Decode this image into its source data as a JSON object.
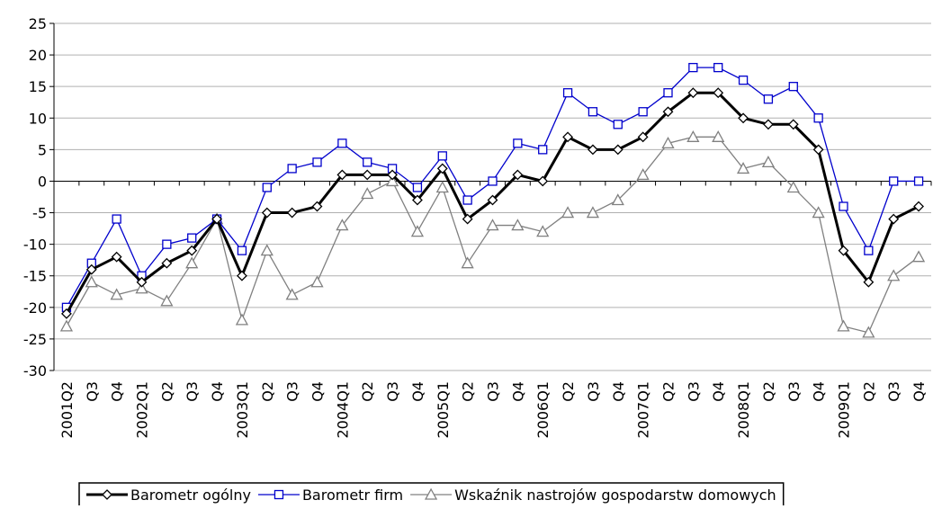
{
  "chart_data": {
    "type": "line",
    "categories": [
      "2001Q2",
      "Q3",
      "Q4",
      "2002Q1",
      "Q2",
      "Q3",
      "Q4",
      "2003Q1",
      "Q2",
      "Q3",
      "Q4",
      "2004Q1",
      "Q2",
      "Q3",
      "Q4",
      "2005Q1",
      "Q2",
      "Q3",
      "Q4",
      "2006Q1",
      "Q2",
      "Q3",
      "Q4",
      "2007Q1",
      "Q2",
      "Q3",
      "Q4",
      "2008Q1",
      "Q2",
      "Q3",
      "Q4",
      "2009Q1",
      "Q2",
      "Q3",
      "Q4"
    ],
    "series": [
      {
        "name": "Barometr ogólny",
        "color": "#000000",
        "marker": "diamond",
        "values": [
          -21,
          -14,
          -12,
          -16,
          -13,
          -11,
          -6,
          -15,
          -5,
          -5,
          -4,
          1,
          1,
          1,
          -3,
          2,
          -6,
          -3,
          1,
          0,
          7,
          5,
          5,
          7,
          11,
          14,
          14,
          10,
          9,
          9,
          5,
          -11,
          -16,
          -6,
          -4
        ]
      },
      {
        "name": "Barometr firm",
        "color": "#0000cc",
        "marker": "square",
        "values": [
          -20,
          -13,
          -6,
          -15,
          -10,
          -9,
          -6,
          -11,
          -1,
          2,
          3,
          6,
          3,
          2,
          -1,
          4,
          -3,
          0,
          6,
          5,
          14,
          11,
          9,
          11,
          14,
          18,
          18,
          16,
          13,
          15,
          10,
          -4,
          -11,
          0,
          0
        ]
      },
      {
        "name": "Wskaźnik nastrojów gospodarstw domowych",
        "color": "#808080",
        "marker": "triangle",
        "values": [
          -23,
          -16,
          -18,
          -17,
          -19,
          -13,
          -6,
          -22,
          -11,
          -18,
          -16,
          -7,
          -2,
          0,
          -8,
          -1,
          -13,
          -7,
          -7,
          -8,
          -5,
          -5,
          -3,
          1,
          6,
          7,
          7,
          2,
          3,
          -1,
          -5,
          -23,
          -24,
          -15,
          -12
        ]
      }
    ],
    "ylim": [
      -30,
      25
    ],
    "yticks": [
      -30,
      -25,
      -20,
      -15,
      -10,
      -5,
      0,
      5,
      10,
      15,
      20,
      25
    ],
    "grid": true,
    "legend": "bottom"
  }
}
